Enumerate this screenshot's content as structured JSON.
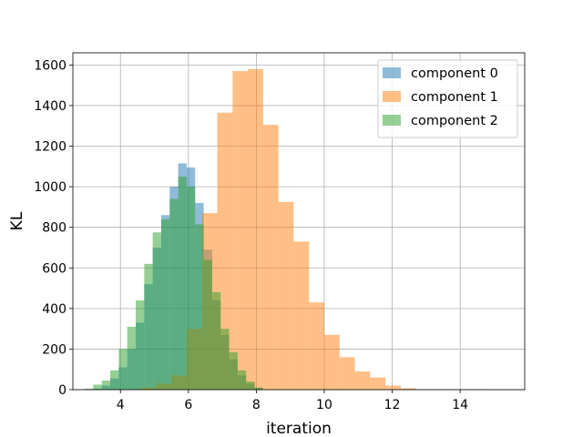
{
  "chart_data": {
    "type": "histogram",
    "title": "",
    "xlabel": "iteration",
    "ylabel": "KL",
    "xlim": [
      2.6,
      15.9
    ],
    "ylim": [
      0,
      1660
    ],
    "xticks": [
      4,
      6,
      8,
      10,
      12,
      14
    ],
    "yticks": [
      0,
      200,
      400,
      600,
      800,
      1000,
      1200,
      1400,
      1600
    ],
    "grid": true,
    "legend_position": "top-right",
    "series": [
      {
        "name": "component 0",
        "color": "#1f77b4",
        "alpha": 0.5,
        "bins": [
          [
            3.2,
            3.45,
            5
          ],
          [
            3.45,
            3.7,
            20
          ],
          [
            3.7,
            3.95,
            55
          ],
          [
            3.95,
            4.2,
            110
          ],
          [
            4.2,
            4.45,
            200
          ],
          [
            4.45,
            4.7,
            330
          ],
          [
            4.7,
            4.95,
            520
          ],
          [
            4.95,
            5.2,
            700
          ],
          [
            5.2,
            5.45,
            860
          ],
          [
            5.45,
            5.7,
            1000
          ],
          [
            5.7,
            5.95,
            1115
          ],
          [
            5.95,
            6.2,
            1095
          ],
          [
            6.2,
            6.45,
            920
          ],
          [
            6.45,
            6.7,
            690
          ],
          [
            6.7,
            6.95,
            440
          ],
          [
            6.95,
            7.2,
            270
          ],
          [
            7.2,
            7.45,
            150
          ],
          [
            7.45,
            7.7,
            70
          ],
          [
            7.7,
            7.95,
            30
          ],
          [
            7.95,
            8.2,
            10
          ]
        ]
      },
      {
        "name": "component 1",
        "color": "#ff7f0e",
        "alpha": 0.5,
        "bins": [
          [
            4.6,
            5.05,
            10
          ],
          [
            5.05,
            5.5,
            30
          ],
          [
            5.5,
            5.95,
            70
          ],
          [
            5.95,
            6.4,
            300
          ],
          [
            6.4,
            6.85,
            870
          ],
          [
            6.85,
            7.3,
            1365
          ],
          [
            7.3,
            7.75,
            1570
          ],
          [
            7.75,
            8.2,
            1580
          ],
          [
            8.2,
            8.65,
            1305
          ],
          [
            8.65,
            9.1,
            925
          ],
          [
            9.1,
            9.55,
            730
          ],
          [
            9.55,
            10.0,
            430
          ],
          [
            10.0,
            10.45,
            270
          ],
          [
            10.45,
            10.9,
            160
          ],
          [
            10.9,
            11.35,
            90
          ],
          [
            11.35,
            11.8,
            60
          ],
          [
            11.8,
            12.25,
            20
          ],
          [
            12.25,
            12.7,
            7
          ],
          [
            12.7,
            13.15,
            2
          ],
          [
            13.15,
            13.6,
            1
          ],
          [
            13.6,
            14.05,
            2
          ],
          [
            14.05,
            14.5,
            1
          ],
          [
            14.5,
            14.95,
            1
          ],
          [
            14.95,
            15.4,
            0
          ]
        ]
      },
      {
        "name": "component 2",
        "color": "#2ca02c",
        "alpha": 0.5,
        "bins": [
          [
            2.95,
            3.2,
            5
          ],
          [
            3.2,
            3.45,
            25
          ],
          [
            3.45,
            3.7,
            45
          ],
          [
            3.7,
            3.95,
            95
          ],
          [
            3.95,
            4.2,
            200
          ],
          [
            4.2,
            4.45,
            310
          ],
          [
            4.45,
            4.7,
            440
          ],
          [
            4.7,
            4.95,
            620
          ],
          [
            4.95,
            5.2,
            775
          ],
          [
            5.2,
            5.45,
            840
          ],
          [
            5.45,
            5.7,
            940
          ],
          [
            5.7,
            5.95,
            1050
          ],
          [
            5.95,
            6.2,
            1000
          ],
          [
            6.2,
            6.45,
            815
          ],
          [
            6.45,
            6.7,
            640
          ],
          [
            6.7,
            6.95,
            480
          ],
          [
            6.95,
            7.2,
            300
          ],
          [
            7.2,
            7.45,
            185
          ],
          [
            7.45,
            7.7,
            95
          ],
          [
            7.7,
            7.95,
            40
          ],
          [
            7.95,
            8.2,
            10
          ]
        ]
      }
    ]
  }
}
